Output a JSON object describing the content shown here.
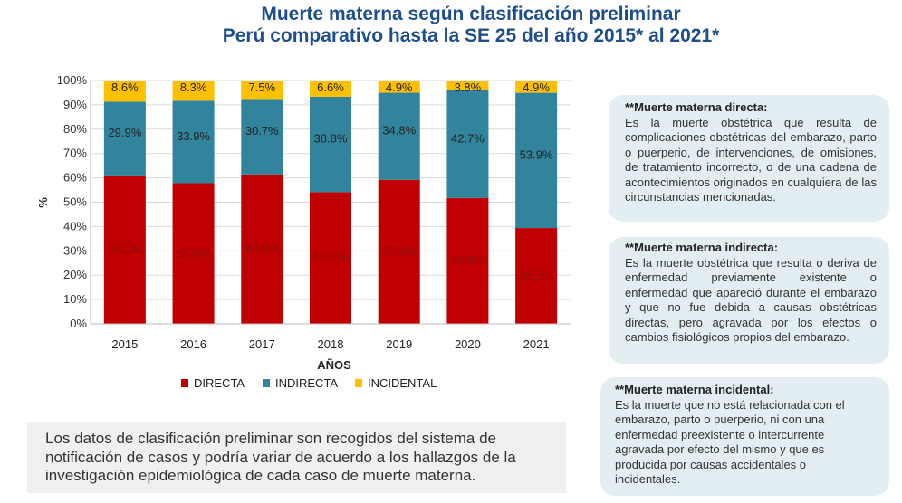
{
  "title": {
    "line1": "Muerte materna según clasificación preliminar",
    "line2": "Perú  comparativo hasta la SE 25 del año 2015* al 2021*"
  },
  "chart_data": {
    "type": "bar",
    "stacked": true,
    "categories": [
      "2015",
      "2016",
      "2017",
      "2018",
      "2019",
      "2020",
      "2021"
    ],
    "series": [
      {
        "name": "DIRECTA",
        "color": "#c00000",
        "values": [
          60.2,
          57.8,
          60.8,
          53.6,
          57.6,
          49.8,
          38.2
        ]
      },
      {
        "name": "INDIRECTA",
        "color": "#31849b",
        "values": [
          29.9,
          33.9,
          30.7,
          38.8,
          34.8,
          42.7,
          53.9
        ]
      },
      {
        "name": "INCIDENTAL",
        "color": "#ffc000",
        "values": [
          8.6,
          8.3,
          7.5,
          6.6,
          4.9,
          3.8,
          4.9
        ]
      }
    ],
    "xlabel": "AÑOS",
    "ylabel": "%",
    "ylim": [
      0,
      100
    ],
    "yticks": [
      "0%",
      "10%",
      "20%",
      "30%",
      "40%",
      "50%",
      "60%",
      "70%",
      "80%",
      "90%",
      "100%"
    ],
    "grid": true,
    "legend": "bottom"
  },
  "definitions": [
    {
      "heading": "**Muerte materna directa:",
      "text": "Es la muerte obstétrica que resulta de complicaciones obstétricas del embarazo, parto o puerperio, de intervenciones, de omisiones, de tratamiento incorrecto, o de una cadena de acontecimientos originados en cualquiera de las circunstancias mencionadas."
    },
    {
      "heading": "**Muerte materna indirecta:",
      "text": "Es la muerte obstétrica que resulta o deriva de enfermedad previamente existente o enfermedad que apareció durante el embarazo y que no fue debida a causas obstétricas directas, pero agravada por los efectos o cambios fisiológicos propios del embarazo."
    },
    {
      "heading": "**Muerte materna incidental:",
      "text": "Es la muerte que no está relacionada con el embarazo, parto o puerperio, ni con una enfermedad preexistente o intercurrente agravada por efecto del mismo y que es producida por causas accidentales o incidentales."
    }
  ],
  "note": "Los datos de clasificación preliminar son recogidos del sistema de notificación de casos y podría variar de acuerdo a los hallazgos de la investigación epidemiológica de cada caso de muerte materna."
}
